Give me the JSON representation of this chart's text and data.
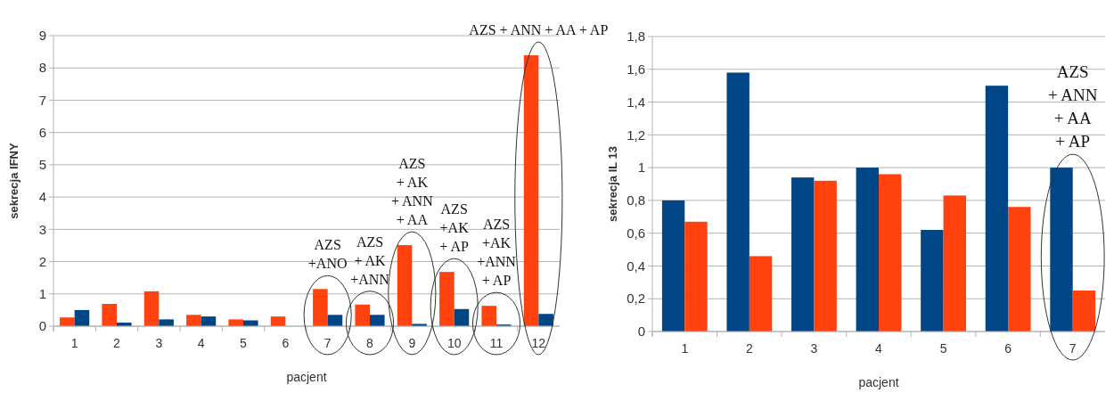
{
  "chart_data": [
    {
      "type": "bar",
      "xlabel": "pacjent",
      "ylabel": "sekrecja IFNY",
      "categories": [
        "1",
        "2",
        "3",
        "4",
        "5",
        "6",
        "7",
        "8",
        "9",
        "10",
        "11",
        "12"
      ],
      "series": [
        {
          "color": "#ff420e",
          "values": [
            0.27,
            0.69,
            1.08,
            0.35,
            0.21,
            0.3,
            1.15,
            0.67,
            2.51,
            1.68,
            0.63,
            8.39
          ]
        },
        {
          "color": "#004586",
          "values": [
            0.5,
            0.11,
            0.21,
            0.3,
            0.18,
            null,
            0.35,
            0.35,
            0.07,
            0.53,
            0.05,
            0.38
          ]
        }
      ],
      "ylim": [
        0,
        9
      ],
      "yticks": [
        0,
        1,
        2,
        3,
        4,
        5,
        6,
        7,
        8,
        9
      ],
      "grid": "y",
      "annotations": [
        {
          "text": "AZS\n+ANO",
          "x": "7",
          "y": 1.15
        },
        {
          "text": "AZS\n+ AK\n+ANN",
          "x": "8",
          "y": 0.67
        },
        {
          "text": "AZS\n+ AK\n+ ANN\n+ AA",
          "x": "9",
          "y": 2.51
        },
        {
          "text": "AZS\n+AK\n+ AP",
          "x": "10",
          "y": 1.68
        },
        {
          "text": "AZS\n+AK\n+ANN\n+ AP",
          "x": "11",
          "y": 0.63
        },
        {
          "text": "AZS + ANN + AA + AP",
          "x": "12",
          "y": 8.39
        }
      ]
    },
    {
      "type": "bar",
      "xlabel": "pacjent",
      "ylabel": "sekrecja IL 13",
      "categories": [
        "1",
        "2",
        "3",
        "4",
        "5",
        "6",
        "7"
      ],
      "series": [
        {
          "color": "#004586",
          "values": [
            0.8,
            1.58,
            0.94,
            1.0,
            0.62,
            1.5,
            1.0
          ]
        },
        {
          "color": "#ff420e",
          "values": [
            0.67,
            0.46,
            0.92,
            0.96,
            0.83,
            0.76,
            0.25
          ]
        }
      ],
      "ylim": [
        0,
        1.8
      ],
      "yticks": [
        0,
        {
          "value": 0.2,
          "label": "0,2"
        },
        {
          "value": 0.4,
          "label": "0,4"
        },
        {
          "value": 0.6,
          "label": "0,6"
        },
        {
          "value": 0.8,
          "label": "0,8"
        },
        1,
        {
          "value": 1.2,
          "label": "1,2"
        },
        {
          "value": 1.4,
          "label": "1,4"
        },
        {
          "value": 1.6,
          "label": "1,6"
        },
        {
          "value": 1.8,
          "label": "1,8"
        }
      ],
      "grid": "y",
      "annotations": [
        {
          "text": "AZS\n+ ANN\n+ AA\n+ AP",
          "x": "7",
          "y": 1.0
        }
      ]
    }
  ]
}
